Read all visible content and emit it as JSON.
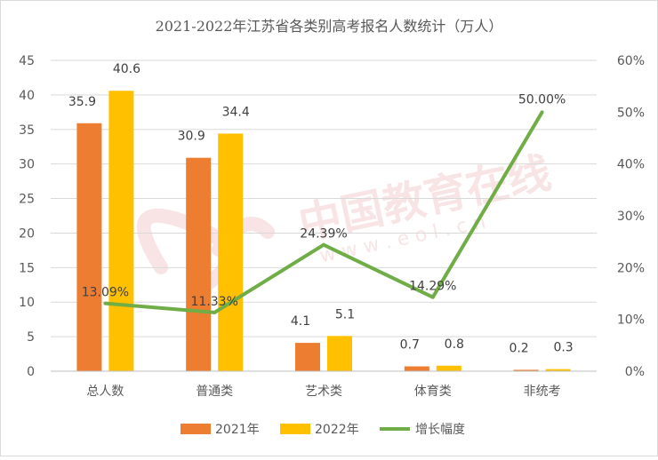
{
  "chart_data": {
    "type": "bar",
    "title": "2021-2022年江苏省各类别高考报名人数统计（万人）",
    "categories": [
      "总人数",
      "普通类",
      "艺术类",
      "体育类",
      "非统考"
    ],
    "series": [
      {
        "name": "2021年",
        "type": "bar",
        "axis": "left",
        "color": "#ED7D31",
        "values": [
          35.9,
          30.9,
          4.1,
          0.7,
          0.2
        ],
        "labels": [
          "35.9",
          "30.9",
          "4.1",
          "0.7",
          "0.2"
        ]
      },
      {
        "name": "2022年",
        "type": "bar",
        "axis": "left",
        "color": "#FFC000",
        "values": [
          40.6,
          34.4,
          5.1,
          0.8,
          0.3
        ],
        "labels": [
          "40.6",
          "34.4",
          "5.1",
          "0.8",
          "0.3"
        ]
      },
      {
        "name": "增长幅度",
        "type": "line",
        "axis": "right",
        "color": "#70AD47",
        "values": [
          13.09,
          11.33,
          24.39,
          14.29,
          50.0
        ],
        "labels": [
          "13.09%",
          "11.33%",
          "24.39%",
          "14.29%",
          "50.00%"
        ]
      }
    ],
    "ylim": [
      0,
      45
    ],
    "y_ticks": [
      "0",
      "5",
      "10",
      "15",
      "20",
      "25",
      "30",
      "35",
      "40",
      "45"
    ],
    "y2lim": [
      0,
      60
    ],
    "y2_ticks": [
      "0%",
      "10%",
      "20%",
      "30%",
      "40%",
      "50%",
      "60%"
    ],
    "grid": true,
    "legend": "bottom"
  },
  "watermark": {
    "text": "中国教育在线",
    "subtext": "w w w . e o l . c n"
  }
}
